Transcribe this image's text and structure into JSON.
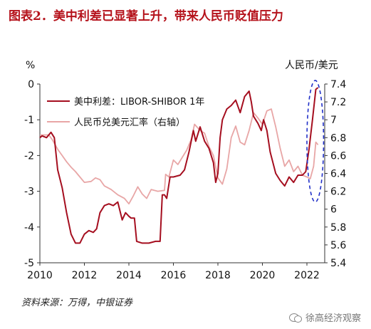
{
  "header": {
    "title": "图表2．美中利差已显著上升，带来人民币贬值压力"
  },
  "footer": {
    "source": "资料来源：万得，中银证券",
    "watermark": "徐高经济观察"
  },
  "colors": {
    "title": "#b5121b",
    "series1": "#a50e1f",
    "series2": "#e8a6a6",
    "highlight": "#2130c8"
  },
  "chart_data": {
    "type": "line",
    "left_axis_unit": "%",
    "right_axis_unit": "人民币/美元",
    "xlim": [
      2010,
      2022.8
    ],
    "x_ticks": [
      "2010",
      "2012",
      "2014",
      "2016",
      "2018",
      "2020",
      "2022"
    ],
    "ylim_left": [
      -5,
      0
    ],
    "y_ticks_left": [
      "0",
      "-1",
      "-2",
      "-3",
      "-4",
      "-5"
    ],
    "ylim_right": [
      5.4,
      7.4
    ],
    "y_ticks_right": [
      "7.4",
      "7.2",
      "7",
      "6.8",
      "6.6",
      "6.4",
      "6.2",
      "6",
      "5.8",
      "5.6",
      "5.4"
    ],
    "legend_position": "top-left",
    "series": [
      {
        "name": "美中利差：LIBOR-SHIBOR 1年",
        "axis": "left",
        "points": [
          [
            2010.0,
            -1.5
          ],
          [
            2010.1,
            -1.45
          ],
          [
            2010.3,
            -1.5
          ],
          [
            2010.5,
            -1.35
          ],
          [
            2010.65,
            -1.5
          ],
          [
            2010.8,
            -2.4
          ],
          [
            2011.0,
            -2.9
          ],
          [
            2011.2,
            -3.6
          ],
          [
            2011.4,
            -4.2
          ],
          [
            2011.6,
            -4.45
          ],
          [
            2011.8,
            -4.45
          ],
          [
            2012.0,
            -4.2
          ],
          [
            2012.2,
            -4.1
          ],
          [
            2012.4,
            -4.15
          ],
          [
            2012.55,
            -4.05
          ],
          [
            2012.7,
            -3.6
          ],
          [
            2012.9,
            -3.4
          ],
          [
            2013.1,
            -3.35
          ],
          [
            2013.3,
            -3.4
          ],
          [
            2013.5,
            -3.3
          ],
          [
            2013.7,
            -3.8
          ],
          [
            2013.85,
            -3.6
          ],
          [
            2014.0,
            -3.7
          ],
          [
            2014.1,
            -3.75
          ],
          [
            2014.25,
            -3.75
          ],
          [
            2014.35,
            -4.4
          ],
          [
            2014.6,
            -4.45
          ],
          [
            2014.9,
            -4.45
          ],
          [
            2015.2,
            -4.4
          ],
          [
            2015.4,
            -4.4
          ],
          [
            2015.5,
            -3.1
          ],
          [
            2015.6,
            -3.1
          ],
          [
            2015.7,
            -3.2
          ],
          [
            2015.85,
            -2.6
          ],
          [
            2016.0,
            -2.6
          ],
          [
            2016.3,
            -2.55
          ],
          [
            2016.5,
            -2.4
          ],
          [
            2016.7,
            -1.9
          ],
          [
            2016.9,
            -1.3
          ],
          [
            2017.0,
            -1.6
          ],
          [
            2017.2,
            -1.2
          ],
          [
            2017.4,
            -1.6
          ],
          [
            2017.6,
            -1.8
          ],
          [
            2017.8,
            -2.2
          ],
          [
            2017.9,
            -2.75
          ],
          [
            2018.0,
            -2.5
          ],
          [
            2018.1,
            -1.5
          ],
          [
            2018.2,
            -1.0
          ],
          [
            2018.4,
            -0.7
          ],
          [
            2018.6,
            -0.6
          ],
          [
            2018.8,
            -0.45
          ],
          [
            2019.0,
            -0.8
          ],
          [
            2019.2,
            -0.35
          ],
          [
            2019.4,
            -0.2
          ],
          [
            2019.5,
            -0.5
          ],
          [
            2019.6,
            -0.9
          ],
          [
            2019.8,
            -1.1
          ],
          [
            2019.95,
            -1.3
          ],
          [
            2020.05,
            -1.0
          ],
          [
            2020.2,
            -1.3
          ],
          [
            2020.35,
            -1.9
          ],
          [
            2020.6,
            -2.5
          ],
          [
            2020.8,
            -2.7
          ],
          [
            2021.0,
            -2.85
          ],
          [
            2021.2,
            -2.6
          ],
          [
            2021.4,
            -2.75
          ],
          [
            2021.6,
            -2.55
          ],
          [
            2021.8,
            -2.55
          ],
          [
            2021.95,
            -2.45
          ],
          [
            2022.1,
            -1.8
          ],
          [
            2022.25,
            -1.0
          ],
          [
            2022.4,
            -0.15
          ],
          [
            2022.5,
            -0.1
          ]
        ]
      },
      {
        "name": "人民币兑美元汇率（右轴）",
        "axis": "right",
        "points": [
          [
            2010.0,
            6.83
          ],
          [
            2010.4,
            6.83
          ],
          [
            2010.55,
            6.78
          ],
          [
            2010.8,
            6.67
          ],
          [
            2011.0,
            6.6
          ],
          [
            2011.2,
            6.53
          ],
          [
            2011.4,
            6.47
          ],
          [
            2011.6,
            6.42
          ],
          [
            2011.8,
            6.36
          ],
          [
            2012.0,
            6.3
          ],
          [
            2012.3,
            6.31
          ],
          [
            2012.5,
            6.35
          ],
          [
            2012.7,
            6.33
          ],
          [
            2012.9,
            6.26
          ],
          [
            2013.2,
            6.22
          ],
          [
            2013.5,
            6.16
          ],
          [
            2013.8,
            6.12
          ],
          [
            2014.0,
            6.06
          ],
          [
            2014.2,
            6.15
          ],
          [
            2014.4,
            6.25
          ],
          [
            2014.6,
            6.17
          ],
          [
            2014.8,
            6.12
          ],
          [
            2015.0,
            6.22
          ],
          [
            2015.3,
            6.2
          ],
          [
            2015.6,
            6.21
          ],
          [
            2015.65,
            6.39
          ],
          [
            2015.8,
            6.36
          ],
          [
            2016.0,
            6.55
          ],
          [
            2016.2,
            6.5
          ],
          [
            2016.4,
            6.58
          ],
          [
            2016.6,
            6.66
          ],
          [
            2016.8,
            6.78
          ],
          [
            2016.95,
            6.95
          ],
          [
            2017.2,
            6.88
          ],
          [
            2017.4,
            6.85
          ],
          [
            2017.6,
            6.7
          ],
          [
            2017.8,
            6.6
          ],
          [
            2018.0,
            6.35
          ],
          [
            2018.2,
            6.28
          ],
          [
            2018.4,
            6.45
          ],
          [
            2018.6,
            6.8
          ],
          [
            2018.8,
            6.93
          ],
          [
            2019.0,
            6.75
          ],
          [
            2019.2,
            6.72
          ],
          [
            2019.4,
            6.88
          ],
          [
            2019.6,
            7.08
          ],
          [
            2019.8,
            7.02
          ],
          [
            2020.0,
            6.95
          ],
          [
            2020.2,
            7.1
          ],
          [
            2020.4,
            7.12
          ],
          [
            2020.6,
            6.92
          ],
          [
            2020.8,
            6.68
          ],
          [
            2021.0,
            6.48
          ],
          [
            2021.2,
            6.55
          ],
          [
            2021.4,
            6.42
          ],
          [
            2021.6,
            6.48
          ],
          [
            2021.8,
            6.38
          ],
          [
            2022.0,
            6.36
          ],
          [
            2022.15,
            6.34
          ],
          [
            2022.3,
            6.48
          ],
          [
            2022.4,
            6.75
          ],
          [
            2022.5,
            6.72
          ]
        ]
      }
    ],
    "annotations": [
      {
        "type": "dashed-ellipse",
        "color": "#2130c8",
        "x_range": [
          2022.0,
          2022.75
        ],
        "y_range_left": [
          -3.3,
          0.1
        ]
      }
    ]
  }
}
